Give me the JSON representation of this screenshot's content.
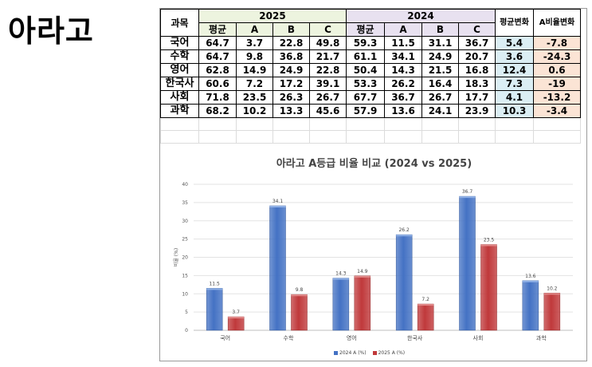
{
  "page_title": "아라고",
  "table": {
    "col_subject": "과목",
    "year_2025": "2025",
    "year_2024": "2024",
    "col_avg_change": "평균변화",
    "col_a_change": "A비율변화",
    "sub_headers": [
      "평균",
      "A",
      "B",
      "C"
    ],
    "rows": [
      {
        "subject": "국어",
        "y2025": [
          "64.7",
          "3.7",
          "22.8",
          "49.8"
        ],
        "y2024": [
          "59.3",
          "11.5",
          "31.1",
          "36.7"
        ],
        "avg_change": "5.4",
        "a_change": "-7.8"
      },
      {
        "subject": "수학",
        "y2025": [
          "64.7",
          "9.8",
          "36.8",
          "21.7"
        ],
        "y2024": [
          "61.1",
          "34.1",
          "24.9",
          "20.7"
        ],
        "avg_change": "3.6",
        "a_change": "-24.3"
      },
      {
        "subject": "영어",
        "y2025": [
          "62.8",
          "14.9",
          "24.9",
          "22.8"
        ],
        "y2024": [
          "50.4",
          "14.3",
          "21.5",
          "16.8"
        ],
        "avg_change": "12.4",
        "a_change": "0.6"
      },
      {
        "subject": "한국사",
        "y2025": [
          "60.6",
          "7.2",
          "17.2",
          "39.1"
        ],
        "y2024": [
          "53.3",
          "26.2",
          "16.4",
          "18.3"
        ],
        "avg_change": "7.3",
        "a_change": "-19"
      },
      {
        "subject": "사회",
        "y2025": [
          "71.8",
          "23.5",
          "26.3",
          "26.7"
        ],
        "y2024": [
          "67.7",
          "36.7",
          "26.7",
          "17.7"
        ],
        "avg_change": "4.1",
        "a_change": "-13.2"
      },
      {
        "subject": "과학",
        "y2025": [
          "68.2",
          "10.2",
          "13.3",
          "45.6"
        ],
        "y2024": [
          "57.9",
          "13.6",
          "24.1",
          "23.9"
        ],
        "avg_change": "10.3",
        "a_change": "-3.4"
      }
    ]
  },
  "colors": {
    "series_2024": "#4472c4",
    "series_2025": "#c0393b",
    "header_2025_bg": "#edf4df",
    "header_2024_bg": "#e8e1f0",
    "avg_change_bg": "#dbeef4",
    "a_change_bg": "#fbe4d5"
  },
  "chart_data": {
    "type": "bar",
    "title": "아라고 A등급 비율 비교 (2024 vs 2025)",
    "ylabel": "비율 (%)",
    "xlabel": "",
    "ylim": [
      0,
      40
    ],
    "yticks": [
      0,
      5,
      10,
      15,
      20,
      25,
      30,
      35,
      40
    ],
    "grid": true,
    "legend_position": "bottom",
    "categories": [
      "국어",
      "수학",
      "영어",
      "한국사",
      "사회",
      "과학"
    ],
    "series": [
      {
        "name": "2024 A (%)",
        "values": [
          11.5,
          34.1,
          14.3,
          26.2,
          36.7,
          13.6
        ]
      },
      {
        "name": "2025 A (%)",
        "values": [
          3.7,
          9.8,
          14.9,
          7.2,
          23.5,
          10.2
        ]
      }
    ]
  }
}
